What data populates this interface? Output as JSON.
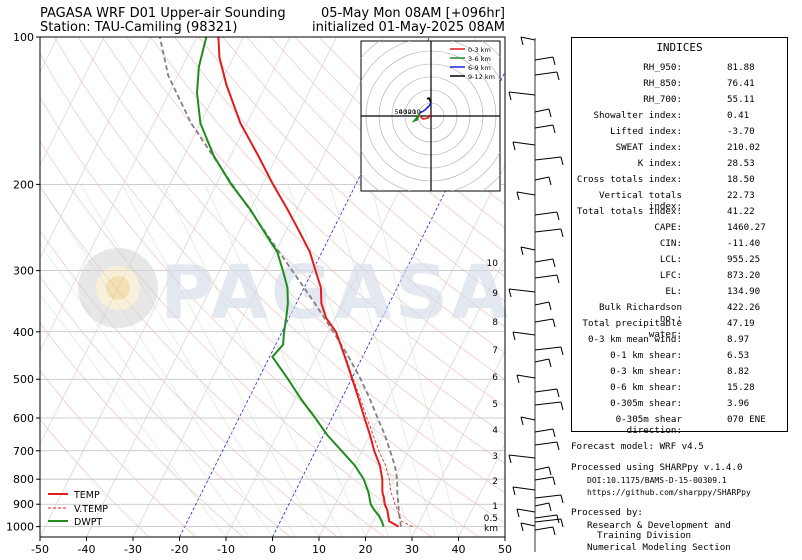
{
  "header": {
    "title_left_1": "PAGASA WRF D01 Upper-air Sounding",
    "title_left_2": "Station: TAU-Camiling (98321)",
    "title_right_1": "05-May Mon 08AM [+096hr]",
    "title_right_2": "initialized 01-May-2025 08AM"
  },
  "watermark": "PAGASA",
  "colors": {
    "temp": "#e41a1c",
    "vtemp": "#e41a1c",
    "dwpt": "#1e8c1e",
    "parcel": "#808080",
    "isotherm": "#1f1fe6"
  },
  "chart_data": {
    "type": "line",
    "subtype": "skew-T log-P sounding",
    "x_ticks": [
      "-50",
      "-40",
      "-30",
      "-20",
      "-10",
      "0",
      "10",
      "20",
      "30",
      "40",
      "50"
    ],
    "y_ticks": [
      "100",
      "200",
      "300",
      "400",
      "500",
      "600",
      "700",
      "800",
      "900",
      "1000"
    ],
    "xlim": [
      -50,
      50
    ],
    "ylim": [
      1050,
      100
    ],
    "y_scale": "log",
    "height_labels": [
      "10",
      "9",
      "8",
      "7",
      "6",
      "5",
      "4",
      "3",
      "2",
      "1",
      "0.5",
      "km"
    ],
    "legend": [
      "TEMP",
      "V.TEMP",
      "DWPT"
    ],
    "series": [
      {
        "name": "TEMP",
        "points": [
          [
            1000,
            26
          ],
          [
            975,
            23.4
          ],
          [
            950,
            22.6
          ],
          [
            925,
            21.8
          ],
          [
            900,
            20.6
          ],
          [
            875,
            19.8
          ],
          [
            850,
            18.8
          ],
          [
            800,
            17.4
          ],
          [
            750,
            15.4
          ],
          [
            700,
            12.6
          ],
          [
            650,
            10
          ],
          [
            600,
            7
          ],
          [
            550,
            3.8
          ],
          [
            500,
            0.2
          ],
          [
            450,
            -3.8
          ],
          [
            400,
            -8.4
          ],
          [
            375,
            -12
          ],
          [
            350,
            -14.6
          ],
          [
            325,
            -16.4
          ],
          [
            300,
            -19.4
          ],
          [
            275,
            -22.6
          ],
          [
            250,
            -27
          ],
          [
            225,
            -32
          ],
          [
            200,
            -37.8
          ],
          [
            175,
            -44
          ],
          [
            150,
            -51.4
          ],
          [
            125,
            -58.6
          ],
          [
            110,
            -63
          ],
          [
            100,
            -65.4
          ]
        ]
      },
      {
        "name": "V.TEMP",
        "points": [
          [
            1000,
            29
          ],
          [
            975,
            26
          ],
          [
            950,
            25
          ],
          [
            925,
            24
          ],
          [
            900,
            22.8
          ],
          [
            875,
            21.8
          ],
          [
            850,
            20.6
          ],
          [
            800,
            18.9
          ],
          [
            750,
            16.6
          ],
          [
            700,
            13.6
          ],
          [
            650,
            10.7
          ],
          [
            600,
            7.5
          ],
          [
            550,
            4.2
          ],
          [
            500,
            0.4
          ],
          [
            450,
            -3.6
          ]
        ]
      },
      {
        "name": "DWPT",
        "points": [
          [
            1000,
            22.8
          ],
          [
            975,
            21.8
          ],
          [
            950,
            20.6
          ],
          [
            925,
            19
          ],
          [
            900,
            17.6
          ],
          [
            850,
            15.8
          ],
          [
            800,
            13.4
          ],
          [
            750,
            10
          ],
          [
            700,
            5.6
          ],
          [
            650,
            0.8
          ],
          [
            600,
            -3.6
          ],
          [
            550,
            -8.6
          ],
          [
            500,
            -13.6
          ],
          [
            450,
            -19.4
          ],
          [
            425,
            -18.4
          ],
          [
            400,
            -19.6
          ],
          [
            375,
            -20.6
          ],
          [
            350,
            -21.8
          ],
          [
            325,
            -23.6
          ],
          [
            300,
            -26.4
          ],
          [
            275,
            -29.6
          ],
          [
            250,
            -34.6
          ],
          [
            225,
            -40
          ],
          [
            200,
            -46.8
          ],
          [
            175,
            -53.6
          ],
          [
            150,
            -60
          ],
          [
            130,
            -64
          ],
          [
            115,
            -66.4
          ],
          [
            100,
            -68
          ]
        ]
      },
      {
        "name": "parcel",
        "points": [
          [
            1000,
            26.5
          ],
          [
            950,
            25
          ],
          [
            900,
            23.5
          ],
          [
            850,
            22
          ],
          [
            800,
            20.6
          ],
          [
            750,
            18.6
          ],
          [
            700,
            16
          ],
          [
            650,
            13.2
          ],
          [
            600,
            9.8
          ],
          [
            550,
            6.2
          ],
          [
            500,
            2
          ],
          [
            450,
            -3
          ],
          [
            400,
            -9
          ],
          [
            350,
            -16
          ],
          [
            300,
            -24.4
          ],
          [
            250,
            -34.4
          ],
          [
            200,
            -46.6
          ],
          [
            150,
            -62
          ],
          [
            120,
            -72
          ],
          [
            100,
            -78
          ]
        ]
      }
    ]
  },
  "hodograph": {
    "legend": [
      "0-3 km",
      "3-6 km",
      "6-9 km",
      "9-12 km"
    ],
    "ring_labels": [
      "50",
      "40",
      "30",
      "20",
      "10"
    ]
  },
  "indices": {
    "title": "INDICES",
    "rows": [
      {
        "label": "RH_950:",
        "value": "81.88"
      },
      {
        "label": "RH_850:",
        "value": "76.41"
      },
      {
        "label": "RH_700:",
        "value": "55.11"
      },
      {
        "label": "Showalter index:",
        "value": "0.41"
      },
      {
        "label": "Lifted index:",
        "value": "-3.70"
      },
      {
        "label": "SWEAT index:",
        "value": "210.02"
      },
      {
        "label": "K index:",
        "value": "28.53"
      },
      {
        "label": "Cross totals index:",
        "value": "18.50"
      },
      {
        "label": "Vertical totals index:",
        "value": "22.73"
      },
      {
        "label": "Total totals index:",
        "value": "41.22"
      },
      {
        "label": "CAPE:",
        "value": "1460.27"
      },
      {
        "label": "CIN:",
        "value": "-11.40"
      },
      {
        "label": "LCL:",
        "value": "955.25"
      },
      {
        "label": "LFC:",
        "value": "873.20"
      },
      {
        "label": "EL:",
        "value": "134.90"
      },
      {
        "label": "Bulk Richardson no.:",
        "value": "422.26"
      },
      {
        "label": "Total precipitable water:",
        "value": "47.19"
      },
      {
        "label": "0-3 km mean wind:",
        "value": "8.97"
      },
      {
        "label": "0-1 km shear:",
        "value": "6.53"
      },
      {
        "label": "0-3 km shear:",
        "value": "8.82"
      },
      {
        "label": "0-6 km shear:",
        "value": "15.28"
      },
      {
        "label": "0-305m shear:",
        "value": "3.96"
      },
      {
        "label": "0-305m shear direction:",
        "value": "070 ENE"
      }
    ]
  },
  "footer": {
    "model": "Forecast model: WRF v4.5",
    "processed": "Processed using SHARPpy v.1.4.0",
    "doi": "DOI:10.1175/BAMS-D-15-00309.1",
    "url": "https://github.com/sharppy/SHARPpy",
    "by": "Processed by:",
    "org1": "Research & Development and",
    "org2": "Training Division",
    "org3": "Numerical Modeling Section"
  }
}
